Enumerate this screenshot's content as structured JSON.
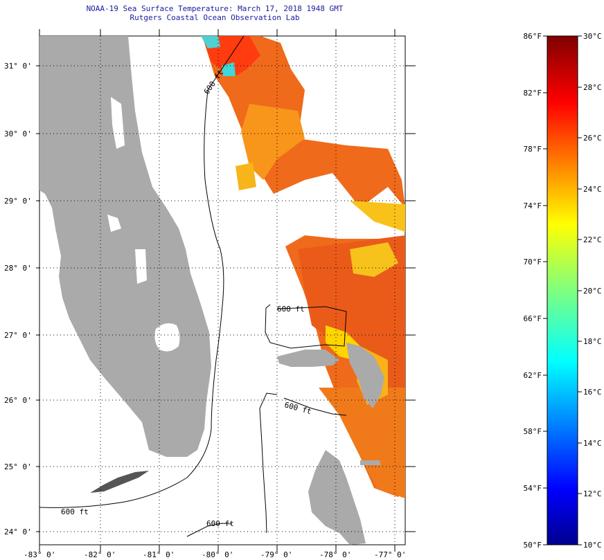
{
  "map": {
    "title_line1": "NOAA-19 Sea Surface Temperature:  March 17, 2018 1948 GMT",
    "title_line2": "Rutgers Coastal Ocean Observation Lab",
    "lat_labels": [
      "31° 0'",
      "30° 0'",
      "29° 0'",
      "28° 0'",
      "27° 0'",
      "26° 0'",
      "25° 0'",
      "24° 0'"
    ],
    "lon_labels": [
      "-83° 0'",
      "-82° 0'",
      "-81° 0'",
      "-80° 0'",
      "-79° 0'",
      "-78° 0'",
      "-77° 0'"
    ],
    "contour_labels": [
      "600 ft",
      "600 ft",
      "600 ft",
      "600 ft",
      "600 ft"
    ],
    "colors": {
      "land": "#aaaaaa",
      "title": "#1a1aa0",
      "grid": "#000000"
    }
  },
  "colorbar": {
    "f_labels": [
      "86°F",
      "82°F",
      "78°F",
      "74°F",
      "70°F",
      "66°F",
      "62°F",
      "58°F",
      "54°F",
      "50°F"
    ],
    "c_labels": [
      "30°C",
      "28°C",
      "26°C",
      "24°C",
      "22°C",
      "20°C",
      "18°C",
      "16°C",
      "14°C",
      "12°C",
      "10°C"
    ],
    "range_f": [
      50,
      86
    ],
    "range_c": [
      10,
      30
    ],
    "colormap": "jet"
  }
}
